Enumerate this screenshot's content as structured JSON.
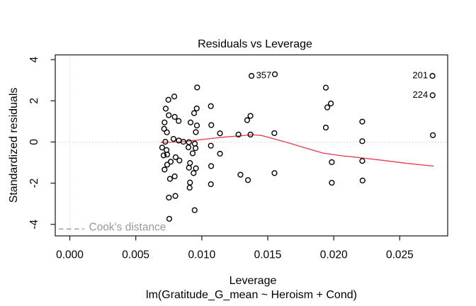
{
  "figure": {
    "title": "Residuals vs Leverage",
    "xlabel": "Leverage",
    "ylabel": "Standardized residuals",
    "model_caption": "lm(Gratitude_G_mean ~ Heroism + Cond)"
  },
  "chart_data": {
    "type": "scatter",
    "title": "Residuals vs Leverage",
    "xlabel": "Leverage",
    "ylabel": "Standardized residuals",
    "caption": "lm(Gratitude_G_mean ~ Heroism + Cond)",
    "xlim": [
      -0.0011,
      0.02863
    ],
    "ylim": [
      -4.56,
      4.23
    ],
    "grid": "off",
    "x_ticks": {
      "values": [
        0.0,
        0.005,
        0.01,
        0.015,
        0.02,
        0.025
      ],
      "labels": [
        "0.000",
        "0.005",
        "0.010",
        "0.015",
        "0.020",
        "0.025"
      ]
    },
    "y_ticks": {
      "values": [
        -4,
        -2,
        0,
        2,
        4
      ],
      "labels": [
        "-4",
        "-2",
        "0",
        "2",
        "4"
      ]
    },
    "reference_lines": {
      "horizontal_at": 0,
      "vertical_at": 0,
      "style": "dotted"
    },
    "legend": {
      "label": "Cook's distance",
      "position": "bottom-left",
      "line_style": "dashed"
    },
    "colors": {
      "points": "#000000",
      "smooth_line": "#e8394f",
      "reference": "#c9c9c9",
      "cooks": "#999999",
      "axis": "#252525"
    },
    "points": [
      [
        0.00727,
        1.62
      ],
      [
        0.00747,
        2.05
      ],
      [
        0.00792,
        2.21
      ],
      [
        0.0075,
        1.3
      ],
      [
        0.00795,
        1.22
      ],
      [
        0.00825,
        1.02
      ],
      [
        0.00718,
        0.95
      ],
      [
        0.00715,
        0.64
      ],
      [
        0.00736,
        0.47
      ],
      [
        0.00724,
        0.01
      ],
      [
        0.00786,
        0.15
      ],
      [
        0.00826,
        0.07
      ],
      [
        0.007,
        -0.27
      ],
      [
        0.00733,
        -0.39
      ],
      [
        0.00711,
        -0.65
      ],
      [
        0.00738,
        -0.61
      ],
      [
        0.00765,
        -0.96
      ],
      [
        0.00802,
        -0.74
      ],
      [
        0.00831,
        -0.9
      ],
      [
        0.00738,
        -1.1
      ],
      [
        0.00718,
        -1.34
      ],
      [
        0.00759,
        -1.79
      ],
      [
        0.00795,
        -1.67
      ],
      [
        0.00751,
        -2.7
      ],
      [
        0.008,
        -2.62
      ],
      [
        0.00754,
        -3.73
      ],
      [
        0.00903,
        -0.01
      ],
      [
        0.00861,
        0.01
      ],
      [
        0.00899,
        -0.26
      ],
      [
        0.00953,
        -0.3
      ],
      [
        0.00931,
        -0.55
      ],
      [
        0.00915,
        0.95
      ],
      [
        0.00942,
        1.4
      ],
      [
        0.00962,
        1.63
      ],
      [
        0.00965,
        2.65
      ],
      [
        0.00963,
        0.8
      ],
      [
        0.00955,
        0.48
      ],
      [
        0.00947,
        -0.08
      ],
      [
        0.00911,
        -1.02
      ],
      [
        0.00903,
        -1.25
      ],
      [
        0.00956,
        -1.28
      ],
      [
        0.00938,
        -1.51
      ],
      [
        0.00911,
        -1.97
      ],
      [
        0.00908,
        -2.22
      ],
      [
        0.00946,
        -3.31
      ],
      [
        0.01069,
        1.74
      ],
      [
        0.01072,
        0.82
      ],
      [
        0.01069,
        -0.18
      ],
      [
        0.01138,
        0.42
      ],
      [
        0.01138,
        -0.57
      ],
      [
        0.01071,
        -1.17
      ],
      [
        0.01069,
        -2.05
      ],
      [
        0.01278,
        0.36
      ],
      [
        0.01369,
        0.36
      ],
      [
        0.01344,
        1.06
      ],
      [
        0.01369,
        1.27
      ],
      [
        0.01377,
        3.21
      ],
      [
        0.01554,
        3.29
      ],
      [
        0.0155,
        0.43
      ],
      [
        0.01293,
        -1.59
      ],
      [
        0.0135,
        -1.85
      ],
      [
        0.01551,
        -1.51
      ],
      [
        0.0194,
        2.64
      ],
      [
        0.01978,
        1.87
      ],
      [
        0.01951,
        1.68
      ],
      [
        0.0194,
        0.7
      ],
      [
        0.01985,
        -0.98
      ],
      [
        0.01985,
        -1.98
      ],
      [
        0.02216,
        0.99
      ],
      [
        0.02216,
        0.04
      ],
      [
        0.02216,
        -0.92
      ],
      [
        0.02218,
        -1.87
      ],
      [
        0.02751,
        0.33
      ],
      [
        0.02748,
        3.21
      ],
      [
        0.02749,
        2.27
      ]
    ],
    "smooth_line": {
      "name": "lowess-smooth",
      "path": [
        [
          0.0069,
          -0.02
        ],
        [
          0.00776,
          -0.01
        ],
        [
          0.00867,
          0.02
        ],
        [
          0.00974,
          0.1
        ],
        [
          0.01082,
          0.18
        ],
        [
          0.01189,
          0.25
        ],
        [
          0.01296,
          0.3
        ],
        [
          0.01387,
          0.35
        ],
        [
          0.01457,
          0.31
        ],
        [
          0.01548,
          0.15
        ],
        [
          0.01672,
          -0.07
        ],
        [
          0.01769,
          -0.26
        ],
        [
          0.0186,
          -0.43
        ],
        [
          0.01919,
          -0.54
        ],
        [
          0.02048,
          -0.66
        ],
        [
          0.02209,
          -0.77
        ],
        [
          0.0237,
          -0.89
        ],
        [
          0.02557,
          -1.04
        ],
        [
          0.02756,
          -1.17
        ]
      ]
    },
    "annotations": [
      {
        "text": "357",
        "x": 0.01377,
        "y": 3.21,
        "side": "right"
      },
      {
        "text": "201",
        "x": 0.02748,
        "y": 3.21,
        "side": "left"
      },
      {
        "text": "224",
        "x": 0.02749,
        "y": 2.27,
        "side": "left"
      }
    ]
  }
}
